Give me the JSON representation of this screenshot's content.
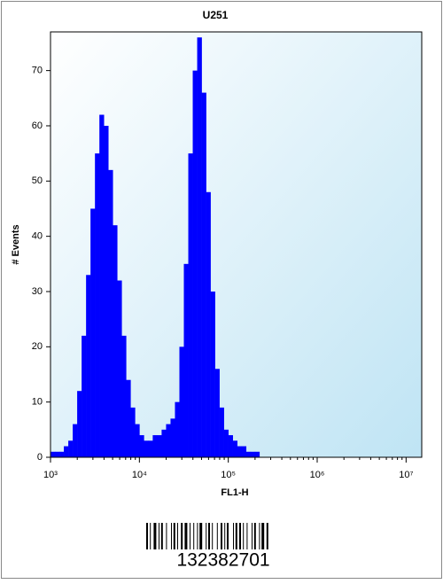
{
  "chart_data": {
    "type": "histogram",
    "title": "U251",
    "x_label": "FL1-H",
    "y_label": "# Events",
    "xscale": "log",
    "color": "#0000ff",
    "bins": [
      1000,
      1122,
      1259,
      1413,
      1585,
      1778,
      1995,
      2239,
      2512,
      2818,
      3162,
      3548,
      3981,
      4467,
      5012,
      5623,
      6310,
      7079,
      7943,
      8913,
      10000,
      11220,
      12589,
      14125,
      15849,
      17783,
      19953,
      22387,
      25119,
      28184,
      31623,
      35481,
      39811,
      44668,
      50119,
      56234,
      63096,
      70795,
      79433,
      89125,
      100000,
      112202,
      125893,
      141254,
      158489,
      177828,
      199526,
      223872,
      251189,
      281838,
      316228,
      354813,
      398107
    ],
    "values": [
      1,
      1,
      1,
      2,
      3,
      6,
      12,
      22,
      33,
      45,
      55,
      62,
      60,
      52,
      42,
      32,
      22,
      14,
      9,
      6,
      4,
      3,
      3,
      4,
      4,
      5,
      6,
      7,
      10,
      20,
      35,
      55,
      70,
      76,
      66,
      48,
      30,
      16,
      9,
      5,
      4,
      3,
      2,
      2,
      1,
      1,
      1,
      0,
      0,
      0,
      0,
      0
    ],
    "xlim": [
      1000,
      15000000
    ],
    "ylim": [
      0,
      77
    ],
    "xticks": [
      {
        "value": 1000,
        "label": "10³"
      },
      {
        "value": 10000,
        "label": "10⁴"
      },
      {
        "value": 100000,
        "label": "10⁵"
      },
      {
        "value": 1000000,
        "label": "10⁶"
      },
      {
        "value": 10000000,
        "label": "10⁷"
      }
    ],
    "yticks": [
      0,
      10,
      20,
      30,
      40,
      50,
      60,
      70
    ]
  },
  "barcode": "132382701"
}
